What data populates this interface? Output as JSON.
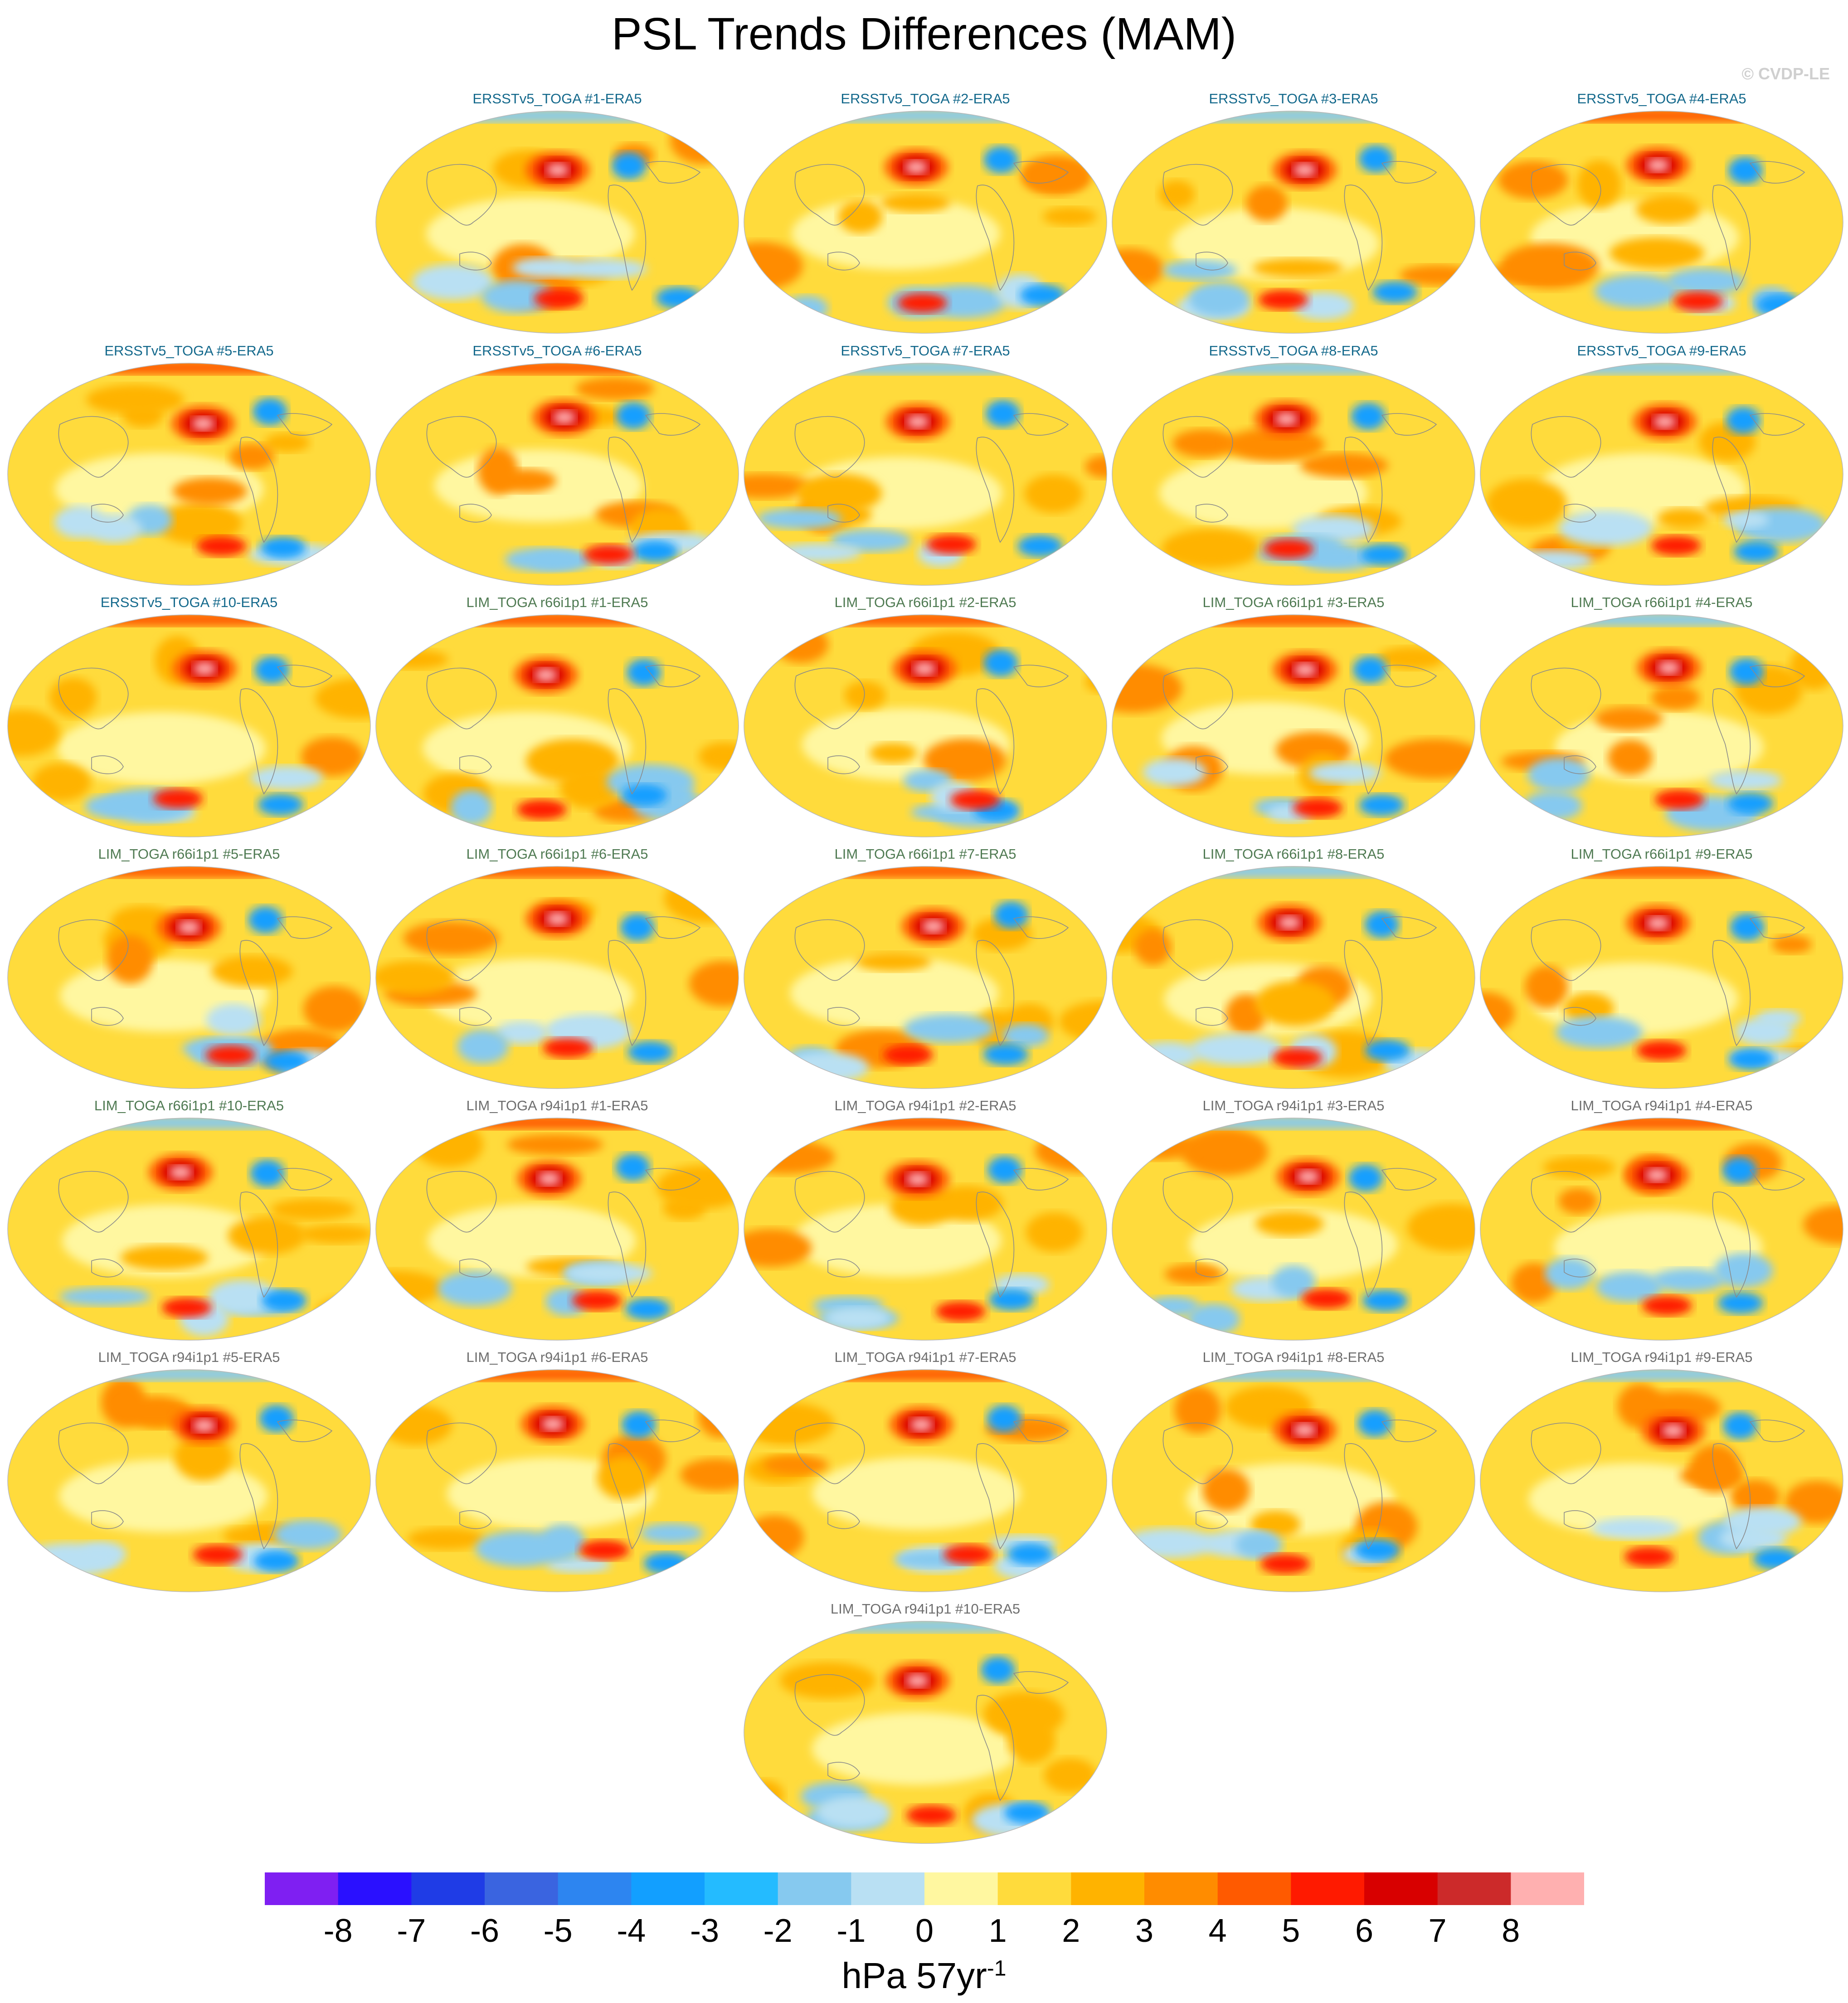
{
  "figure": {
    "title": "PSL Trends Differences (MAM)",
    "copyright": "© CVDP-LE"
  },
  "colorbar": {
    "ticks": [
      "-8",
      "-7",
      "-6",
      "-5",
      "-4",
      "-3",
      "-2",
      "-1",
      "0",
      "1",
      "2",
      "3",
      "4",
      "5",
      "6",
      "7",
      "8"
    ],
    "colors": [
      "#7f1ff2",
      "#2a10ff",
      "#1f3ce6",
      "#3a64e0",
      "#2d85f0",
      "#129fff",
      "#24bbff",
      "#86c9ef",
      "#b9e0f3",
      "#fff7a0",
      "#ffdb3c",
      "#ffb300",
      "#ff8c00",
      "#ff5a00",
      "#ff1a00",
      "#d80000",
      "#cc2a2a",
      "#ffb0b0"
    ],
    "units_text": "hPa 57yr",
    "units_exp": "-1"
  },
  "panels": [
    {
      "title": "ERSSTv5_TOGA #1-ERA5",
      "group": "ersst",
      "seed": 11
    },
    {
      "title": "ERSSTv5_TOGA #2-ERA5",
      "group": "ersst",
      "seed": 23
    },
    {
      "title": "ERSSTv5_TOGA #3-ERA5",
      "group": "ersst",
      "seed": 37
    },
    {
      "title": "ERSSTv5_TOGA #4-ERA5",
      "group": "ersst",
      "seed": 41
    },
    {
      "title": "ERSSTv5_TOGA #5-ERA5",
      "group": "ersst",
      "seed": 53
    },
    {
      "title": "ERSSTv5_TOGA #6-ERA5",
      "group": "ersst",
      "seed": 67
    },
    {
      "title": "ERSSTv5_TOGA #7-ERA5",
      "group": "ersst",
      "seed": 71
    },
    {
      "title": "ERSSTv5_TOGA #8-ERA5",
      "group": "ersst",
      "seed": 83
    },
    {
      "title": "ERSSTv5_TOGA #9-ERA5",
      "group": "ersst",
      "seed": 97
    },
    {
      "title": "ERSSTv5_TOGA #10-ERA5",
      "group": "ersst",
      "seed": 101
    },
    {
      "title": "LIM_TOGA r66i1p1 #1-ERA5",
      "group": "lim66",
      "seed": 113
    },
    {
      "title": "LIM_TOGA r66i1p1 #2-ERA5",
      "group": "lim66",
      "seed": 127
    },
    {
      "title": "LIM_TOGA r66i1p1 #3-ERA5",
      "group": "lim66",
      "seed": 131
    },
    {
      "title": "LIM_TOGA r66i1p1 #4-ERA5",
      "group": "lim66",
      "seed": 149
    },
    {
      "title": "LIM_TOGA r66i1p1 #5-ERA5",
      "group": "lim66",
      "seed": 151
    },
    {
      "title": "LIM_TOGA r66i1p1 #6-ERA5",
      "group": "lim66",
      "seed": 163
    },
    {
      "title": "LIM_TOGA r66i1p1 #7-ERA5",
      "group": "lim66",
      "seed": 173
    },
    {
      "title": "LIM_TOGA r66i1p1 #8-ERA5",
      "group": "lim66",
      "seed": 181
    },
    {
      "title": "LIM_TOGA r66i1p1 #9-ERA5",
      "group": "lim66",
      "seed": 193
    },
    {
      "title": "LIM_TOGA r66i1p1 #10-ERA5",
      "group": "lim66",
      "seed": 199
    },
    {
      "title": "LIM_TOGA r94i1p1 #1-ERA5",
      "group": "lim94",
      "seed": 211
    },
    {
      "title": "LIM_TOGA r94i1p1 #2-ERA5",
      "group": "lim94",
      "seed": 223
    },
    {
      "title": "LIM_TOGA r94i1p1 #3-ERA5",
      "group": "lim94",
      "seed": 229
    },
    {
      "title": "LIM_TOGA r94i1p1 #4-ERA5",
      "group": "lim94",
      "seed": 239
    },
    {
      "title": "LIM_TOGA r94i1p1 #5-ERA5",
      "group": "lim94",
      "seed": 241
    },
    {
      "title": "LIM_TOGA r94i1p1 #6-ERA5",
      "group": "lim94",
      "seed": 251
    },
    {
      "title": "LIM_TOGA r94i1p1 #7-ERA5",
      "group": "lim94",
      "seed": 263
    },
    {
      "title": "LIM_TOGA r94i1p1 #8-ERA5",
      "group": "lim94",
      "seed": 271
    },
    {
      "title": "LIM_TOGA r94i1p1 #9-ERA5",
      "group": "lim94",
      "seed": 283
    },
    {
      "title": "LIM_TOGA r94i1p1 #10-ERA5",
      "group": "lim94",
      "seed": 293
    }
  ]
}
